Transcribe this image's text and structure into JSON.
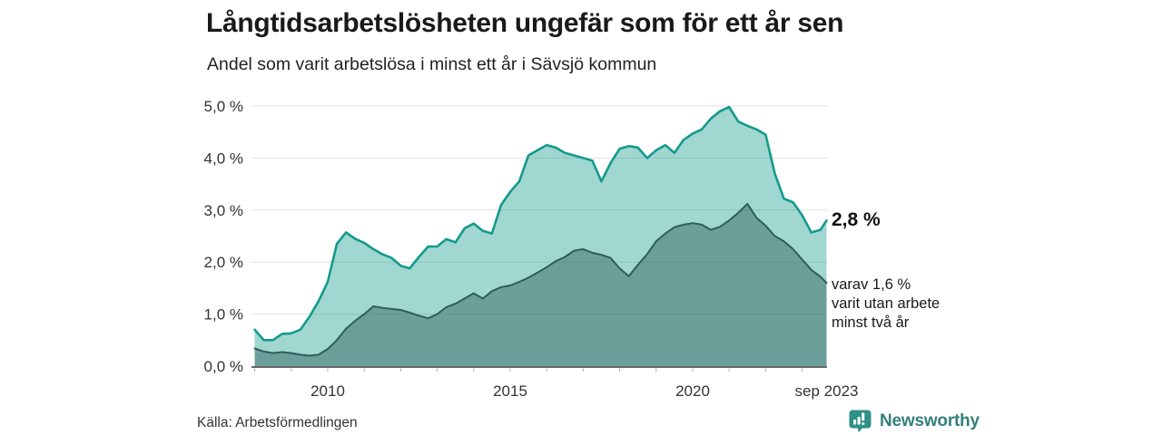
{
  "title": "Långtidsarbetslösheten ungefär som för ett år sen",
  "subtitle": "Andel som varit arbetslösa i minst ett år i Sävsjö kommun",
  "annotations": {
    "latest_value": "2,8 %",
    "note_lines": [
      "varav 1,6 %",
      "varit utan arbete",
      "minst två år"
    ]
  },
  "source": "Källa: Arbetsförmedlingen",
  "branding": {
    "name": "Newsworthy",
    "icon": "newsworthy-chart-bubble-icon",
    "brand_color": "#34807a",
    "icon_color": "#2f9088"
  },
  "colors": {
    "series1_line": "#149a8c",
    "series1_fill": "rgba(20,154,140,0.40)",
    "series2_line": "#2f5d59",
    "series2_fill": "rgba(47,93,89,0.46)",
    "grid": "#e0e0e0",
    "axis": "#333333",
    "tick_text": "#333333"
  },
  "chart_data": {
    "type": "area",
    "title": "Långtidsarbetslösheten ungefär som för ett år sen",
    "subtitle": "Andel som varit arbetslösa i minst ett år i Sävsjö kommun",
    "xlabel": "",
    "ylabel": "",
    "ylim": [
      0,
      5
    ],
    "grid": true,
    "legend": "none",
    "unit": "%",
    "x": [
      2008,
      2008.25,
      2008.5,
      2008.75,
      2009,
      2009.25,
      2009.5,
      2009.75,
      2010,
      2010.25,
      2010.5,
      2010.75,
      2011,
      2011.25,
      2011.5,
      2011.75,
      2012,
      2012.25,
      2012.5,
      2012.75,
      2013,
      2013.25,
      2013.5,
      2013.75,
      2014,
      2014.25,
      2014.5,
      2014.75,
      2015,
      2015.25,
      2015.5,
      2015.75,
      2016,
      2016.25,
      2016.5,
      2016.75,
      2017,
      2017.25,
      2017.5,
      2017.75,
      2018,
      2018.25,
      2018.5,
      2018.75,
      2019,
      2019.25,
      2019.5,
      2019.75,
      2020,
      2020.25,
      2020.5,
      2020.75,
      2021,
      2021.25,
      2021.5,
      2021.75,
      2022,
      2022.25,
      2022.5,
      2022.75,
      2023,
      2023.25,
      2023.5,
      2023.67
    ],
    "series": [
      {
        "name": "Arbetslösa minst ett år",
        "final_label": "2,8 %",
        "values": [
          0.7,
          0.5,
          0.5,
          0.62,
          0.63,
          0.7,
          0.95,
          1.25,
          1.62,
          2.35,
          2.57,
          2.45,
          2.37,
          2.25,
          2.15,
          2.08,
          1.93,
          1.88,
          2.1,
          2.3,
          2.3,
          2.44,
          2.38,
          2.65,
          2.74,
          2.6,
          2.55,
          3.1,
          3.35,
          3.55,
          4.05,
          4.15,
          4.25,
          4.2,
          4.1,
          4.05,
          4.0,
          3.95,
          3.55,
          3.9,
          4.18,
          4.23,
          4.2,
          4.0,
          4.15,
          4.25,
          4.1,
          4.35,
          4.47,
          4.55,
          4.76,
          4.9,
          4.98,
          4.7,
          4.62,
          4.55,
          4.45,
          3.7,
          3.22,
          3.15,
          2.9,
          2.57,
          2.62,
          2.8
        ]
      },
      {
        "name": "varav utan arbete minst två år",
        "final_label": "1,6 %",
        "values": [
          0.34,
          0.28,
          0.25,
          0.27,
          0.25,
          0.22,
          0.2,
          0.22,
          0.33,
          0.5,
          0.72,
          0.87,
          1.0,
          1.15,
          1.12,
          1.1,
          1.08,
          1.03,
          0.97,
          0.92,
          1.0,
          1.13,
          1.2,
          1.3,
          1.4,
          1.3,
          1.44,
          1.52,
          1.55,
          1.62,
          1.7,
          1.8,
          1.9,
          2.02,
          2.1,
          2.22,
          2.25,
          2.18,
          2.14,
          2.08,
          1.88,
          1.73,
          1.95,
          2.15,
          2.4,
          2.55,
          2.67,
          2.72,
          2.75,
          2.72,
          2.62,
          2.68,
          2.8,
          2.95,
          3.12,
          2.85,
          2.7,
          2.5,
          2.4,
          2.25,
          2.05,
          1.85,
          1.72,
          1.6
        ]
      }
    ],
    "yticks": [
      "0,0 %",
      "1,0 %",
      "2,0 %",
      "3,0 %",
      "4,0 %",
      "5,0 %"
    ],
    "xticks": [
      {
        "value": 2010,
        "label": "2010"
      },
      {
        "value": 2015,
        "label": "2015"
      },
      {
        "value": 2020,
        "label": "2020"
      },
      {
        "value": 2023.67,
        "label": "sep 2023"
      }
    ]
  }
}
